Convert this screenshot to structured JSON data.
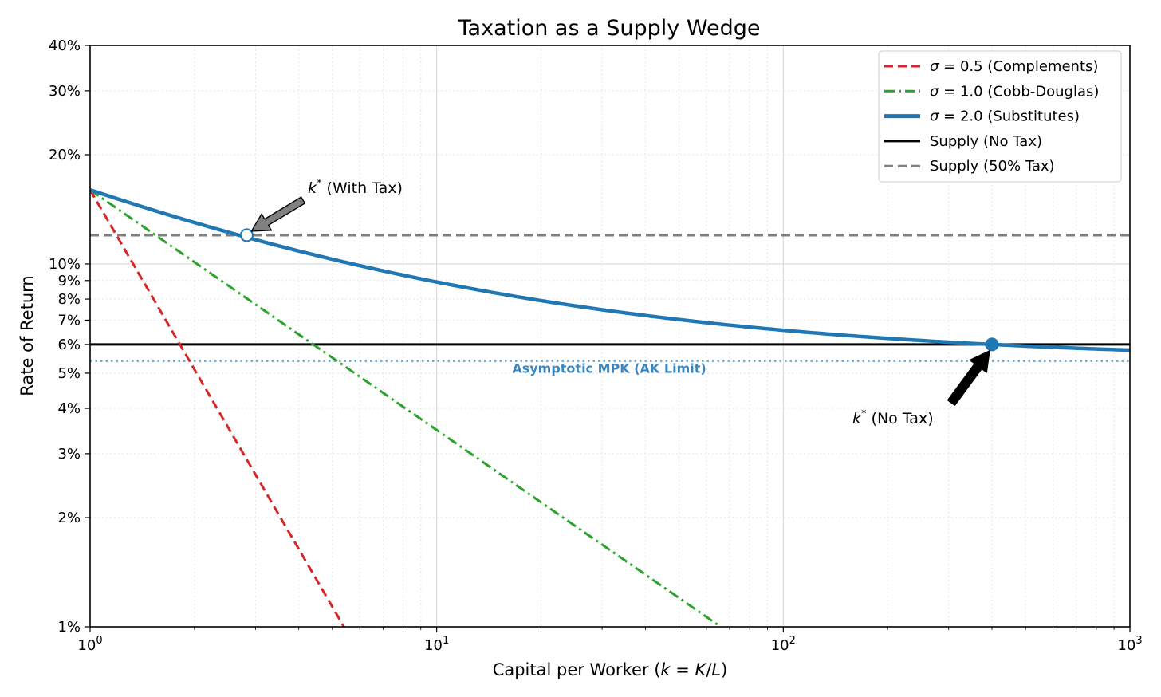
{
  "chart_data": {
    "type": "line",
    "title": "Taxation as a Supply Wedge",
    "xlabel": "Capital per Worker ($k = K/L$)",
    "ylabel": "Rate of Return",
    "xscale": "log",
    "yscale": "log",
    "xlim": [
      1,
      1000
    ],
    "ylim": [
      0.01,
      0.4
    ],
    "x_tick_labels": [
      {
        "value": 1,
        "base": "10",
        "exp": "0"
      },
      {
        "value": 10,
        "base": "10",
        "exp": "1"
      },
      {
        "value": 100,
        "base": "10",
        "exp": "2"
      },
      {
        "value": 1000,
        "base": "10",
        "exp": "3"
      }
    ],
    "y_tick_labels": [
      {
        "value": 0.01,
        "label": "1%"
      },
      {
        "value": 0.02,
        "label": "2%"
      },
      {
        "value": 0.03,
        "label": "3%"
      },
      {
        "value": 0.04,
        "label": "4%"
      },
      {
        "value": 0.05,
        "label": "5%"
      },
      {
        "value": 0.06,
        "label": "6%"
      },
      {
        "value": 0.07,
        "label": "7%"
      },
      {
        "value": 0.08,
        "label": "8%"
      },
      {
        "value": 0.09,
        "label": "9%"
      },
      {
        "value": 0.1,
        "label": "10%"
      },
      {
        "value": 0.2,
        "label": "20%"
      },
      {
        "value": 0.3,
        "label": "30%"
      },
      {
        "value": 0.4,
        "label": "40%"
      }
    ],
    "grid": true,
    "legend_position": "top-right",
    "series": [
      {
        "name": "σ = 0.5 (Complements)",
        "legend_sigma": "σ",
        "legend_text": " = 0.5 (Complements)",
        "color": "#d62728",
        "style": "dashed",
        "x_start": 1,
        "y_start": 0.16,
        "x_end": 5.4,
        "y_end": 0.01
      },
      {
        "name": "σ = 1.0 (Cobb-Douglas)",
        "legend_sigma": "σ",
        "legend_text": " = 1.0 (Cobb-Douglas)",
        "color": "#2ca02c",
        "style": "dashdot",
        "x_start": 1,
        "y_start": 0.16,
        "x_end": 66,
        "y_end": 0.01
      },
      {
        "name": "σ = 2.0 (Substitutes)",
        "legend_sigma": "σ",
        "legend_text": " = 2.0 (Substitutes)",
        "color": "#1f77b4",
        "style": "solid",
        "asymptote": 0.054,
        "x_start": 1,
        "y_start": 0.16,
        "x_end": 1000,
        "y_end": 0.0575
      },
      {
        "name": "Supply (No Tax)",
        "legend_text": "Supply (No Tax)",
        "color": "#000000",
        "style": "solid",
        "y": 0.06
      },
      {
        "name": "Supply (50% Tax)",
        "legend_text": "Supply (50% Tax)",
        "color": "#7f7f7f",
        "style": "dashed",
        "y": 0.12
      }
    ],
    "reference_lines": [
      {
        "name": "Asymptotic MPK (AK Limit)",
        "label": "Asymptotic MPK (AK Limit)",
        "y": 0.054,
        "color": "#6baed6",
        "style": "dotted"
      }
    ],
    "points": [
      {
        "name": "k* (With Tax)",
        "x": 2.83,
        "y": 0.12,
        "filled": false
      },
      {
        "name": "k* (No Tax)",
        "x": 400,
        "y": 0.06,
        "filled": true
      }
    ],
    "annotations": [
      {
        "symbol": "k",
        "sup": "*",
        "text": " (With Tax)",
        "x": 2.83,
        "y": 0.12,
        "arrow_color": "#808080"
      },
      {
        "symbol": "k",
        "sup": "*",
        "text": " (No Tax)",
        "x": 400,
        "y": 0.06,
        "arrow_color": "#000000"
      }
    ]
  }
}
